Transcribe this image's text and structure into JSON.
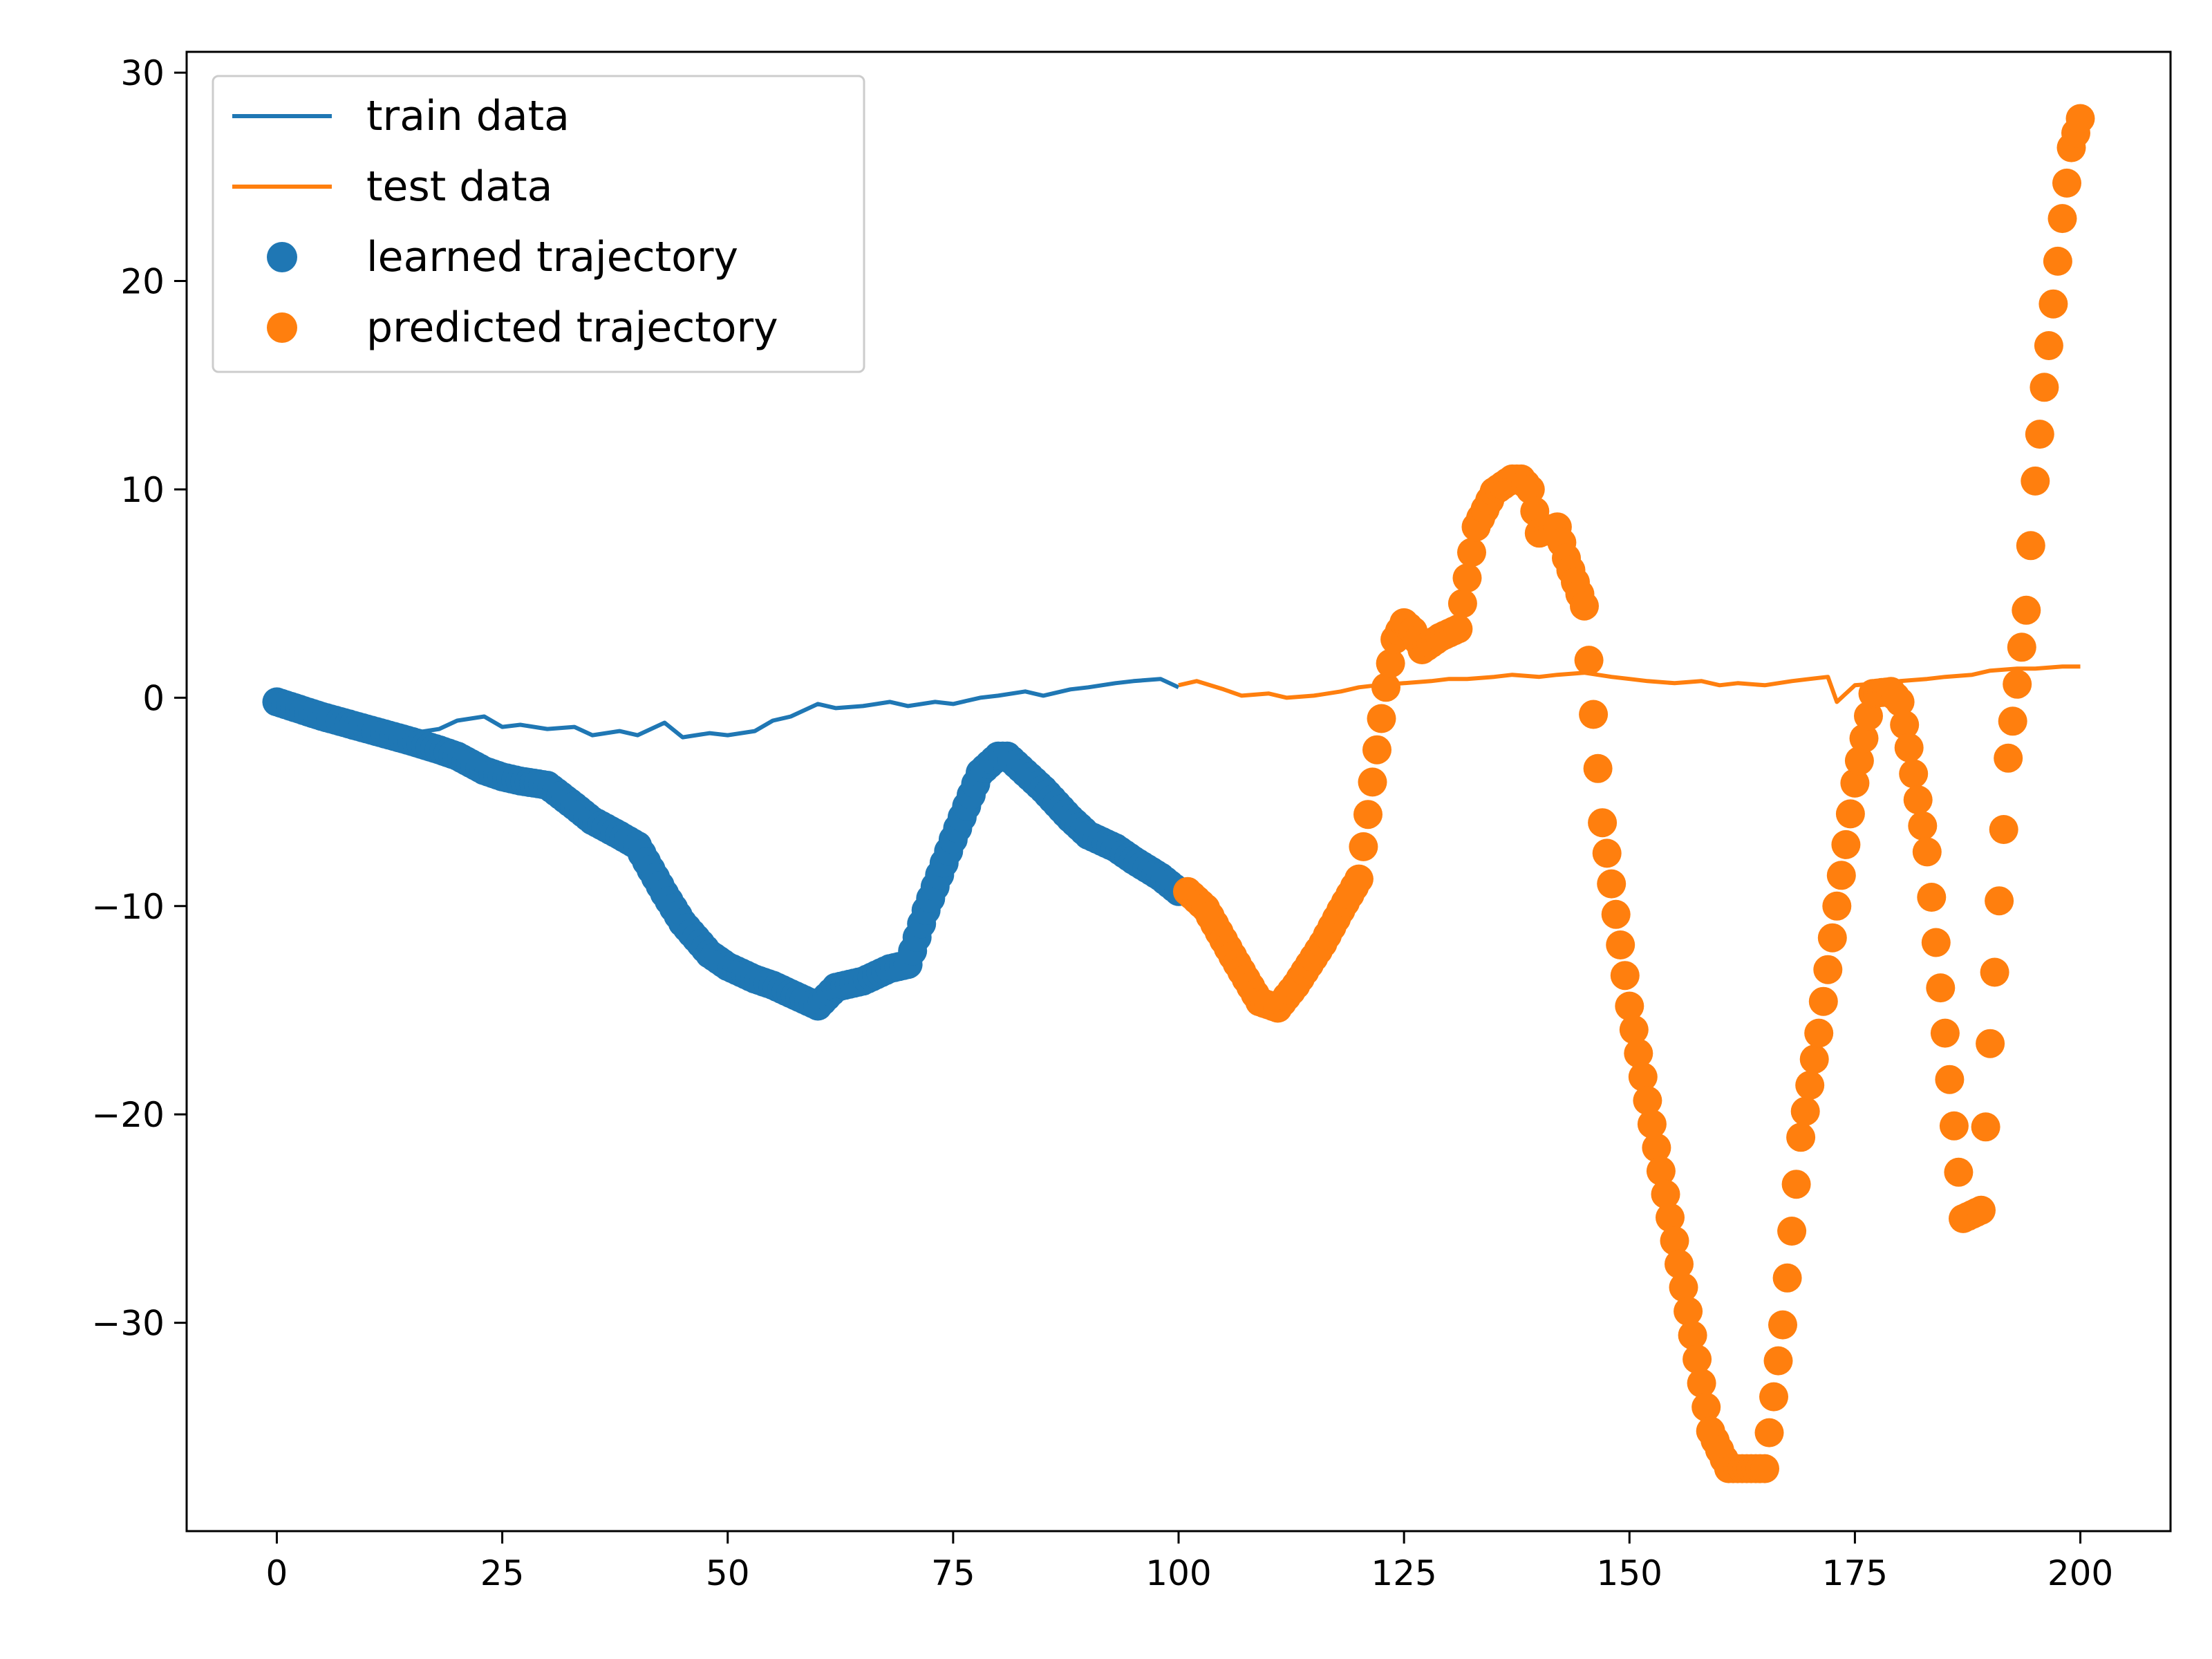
{
  "chart_data": {
    "type": "line",
    "title": "",
    "xlabel": "",
    "ylabel": "",
    "xlim": [
      -10,
      210
    ],
    "ylim": [
      -40,
      31
    ],
    "xticks": [
      0,
      25,
      50,
      75,
      100,
      125,
      150,
      175,
      200
    ],
    "yticks": [
      -30,
      -20,
      -10,
      0,
      10,
      20,
      30
    ],
    "grid": false,
    "legend_position": "upper-left",
    "series": [
      {
        "name": "train data",
        "kind": "line",
        "color": "#1f77b4",
        "x": [
          0,
          5,
          10,
          15,
          18,
          20,
          23,
          25,
          27,
          30,
          33,
          35,
          38,
          40,
          43,
          45,
          48,
          50,
          53,
          55,
          57,
          60,
          62,
          65,
          68,
          70,
          73,
          75,
          78,
          80,
          83,
          85,
          88,
          90,
          93,
          95,
          98,
          100
        ],
        "y": [
          -0.2,
          -0.9,
          -1.3,
          -1.7,
          -1.5,
          -1.1,
          -0.9,
          -1.4,
          -1.3,
          -1.5,
          -1.4,
          -1.8,
          -1.6,
          -1.8,
          -1.2,
          -1.9,
          -1.7,
          -1.8,
          -1.6,
          -1.1,
          -0.9,
          -0.3,
          -0.5,
          -0.4,
          -0.2,
          -0.4,
          -0.2,
          -0.3,
          0.0,
          0.1,
          0.3,
          0.1,
          0.4,
          0.5,
          0.7,
          0.8,
          0.9,
          0.5
        ]
      },
      {
        "name": "test data",
        "kind": "line",
        "color": "#ff7f0e",
        "x": [
          100,
          102,
          105,
          107,
          110,
          112,
          115,
          118,
          120,
          122,
          125,
          128,
          130,
          132,
          135,
          137,
          140,
          142,
          145,
          148,
          150,
          152,
          155,
          158,
          160,
          162,
          165,
          168,
          170,
          172,
          173,
          175,
          178,
          180,
          183,
          185,
          188,
          190,
          193,
          195,
          198,
          200
        ],
        "y": [
          0.6,
          0.8,
          0.4,
          0.1,
          0.2,
          0.0,
          0.1,
          0.3,
          0.5,
          0.6,
          0.7,
          0.8,
          0.9,
          0.9,
          1.0,
          1.1,
          1.0,
          1.1,
          1.2,
          1.0,
          0.9,
          0.8,
          0.7,
          0.8,
          0.6,
          0.7,
          0.6,
          0.8,
          0.9,
          1.0,
          -0.2,
          0.6,
          0.7,
          0.8,
          0.9,
          1.0,
          1.1,
          1.3,
          1.4,
          1.4,
          1.5,
          1.5
        ]
      },
      {
        "name": "learned trajectory",
        "kind": "scatter",
        "color": "#1f77b4",
        "x": [
          0,
          5,
          10,
          15,
          18,
          20,
          23,
          25,
          27,
          30,
          33,
          35,
          38,
          40,
          43,
          45,
          48,
          50,
          53,
          55,
          57,
          60,
          62,
          65,
          68,
          70,
          72,
          75,
          78,
          80,
          81,
          83,
          85,
          88,
          90,
          93,
          95,
          98,
          100
        ],
        "y": [
          -0.2,
          -0.9,
          -1.5,
          -2.1,
          -2.5,
          -2.8,
          -3.5,
          -3.8,
          -4.0,
          -4.2,
          -5.2,
          -5.9,
          -6.6,
          -7.1,
          -9.4,
          -10.8,
          -12.3,
          -12.9,
          -13.5,
          -13.8,
          -14.2,
          -14.8,
          -13.9,
          -13.6,
          -13.0,
          -12.8,
          -10.2,
          -6.8,
          -3.6,
          -2.8,
          -2.8,
          -3.6,
          -4.4,
          -5.8,
          -6.6,
          -7.2,
          -7.8,
          -8.6,
          -9.3
        ]
      },
      {
        "name": "predicted trajectory",
        "kind": "scatter",
        "color": "#ff7f0e",
        "x": [
          101,
          103,
          106,
          109,
          111,
          113,
          116,
          118,
          120,
          122,
          123,
          124,
          125,
          126,
          127,
          129,
          131,
          133,
          135,
          137,
          138,
          139,
          140,
          142,
          143,
          145,
          147,
          150,
          153,
          156,
          159,
          161,
          162,
          164,
          165,
          167,
          169,
          171,
          173,
          175,
          177,
          179,
          180,
          181,
          183,
          185,
          187,
          189,
          190,
          192,
          194,
          195,
          196,
          197,
          198,
          199,
          200
        ],
        "y": [
          -9.3,
          -10.1,
          -12.4,
          -14.6,
          -14.9,
          -13.8,
          -11.8,
          -10.2,
          -8.7,
          -2.5,
          0.5,
          2.8,
          3.6,
          3.2,
          2.3,
          2.9,
          3.3,
          8.2,
          9.9,
          10.5,
          10.5,
          10.0,
          7.9,
          8.2,
          6.7,
          4.4,
          -6.0,
          -14.8,
          -21.6,
          -28.3,
          -35.2,
          -37.0,
          -37.0,
          -37.0,
          -37.0,
          -30.1,
          -21.1,
          -16.1,
          -10.0,
          -4.1,
          0.2,
          0.3,
          -0.2,
          -2.4,
          -7.4,
          -16.1,
          -25.0,
          -24.6,
          -16.6,
          -2.9,
          4.2,
          10.4,
          14.9,
          18.9,
          23.0,
          26.4,
          27.8
        ]
      }
    ]
  },
  "colors": {
    "blue": "#1f77b4",
    "orange": "#ff7f0e",
    "axis": "#000000",
    "legend_border": "#cccccc"
  }
}
